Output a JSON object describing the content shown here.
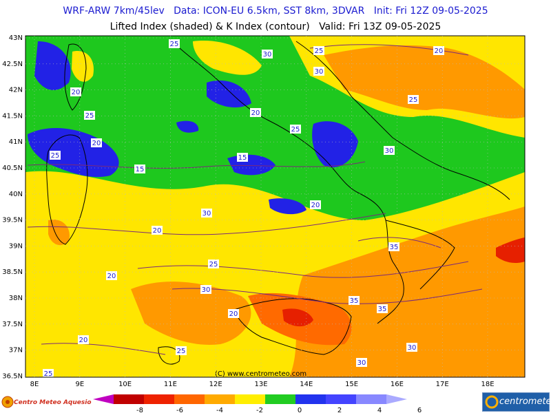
{
  "header": {
    "line1": "WRF-ARW 7km/45lev   Data: ICON-EU 6.5km, SST 8km, 3DVAR   Init: Fri 12Z 09-05-2025",
    "line2": "Lifted Index (shaded) & K Index (contour)   Valid: Fri 13Z 09-05-2025"
  },
  "axes": {
    "lat_labels": [
      "43N",
      "42.5N",
      "42N",
      "41.5N",
      "41N",
      "40.5N",
      "40N",
      "39.5N",
      "39N",
      "38.5N",
      "38N",
      "37.5N",
      "37N",
      "36.5N"
    ],
    "lon_labels": [
      "8E",
      "9E",
      "10E",
      "11E",
      "12E",
      "13E",
      "14E",
      "15E",
      "16E",
      "17E",
      "18E"
    ],
    "lat_range": [
      36.5,
      43
    ],
    "lon_range": [
      7.9,
      18.9
    ]
  },
  "watermark": "(C) www.centrometeo.com",
  "contour_labels": [
    "25",
    "30",
    "25",
    "20",
    "30",
    "20",
    "25",
    "20",
    "25",
    "20",
    "25",
    "15",
    "15",
    "30",
    "20",
    "20",
    "25",
    "20",
    "25",
    "30",
    "30",
    "20",
    "35",
    "35",
    "35",
    "30",
    "20",
    "25",
    "30",
    "25"
  ],
  "colorbar": {
    "ticks": [
      "-8",
      "-6",
      "-4",
      "-2",
      "0",
      "2",
      "4",
      "6"
    ],
    "colors": [
      "#c000c0",
      "#c00000",
      "#ee2200",
      "#ff6600",
      "#ffaa00",
      "#ffee00",
      "#22cc22",
      "#2233ee",
      "#4444ff",
      "#8888ff",
      "#aaaaff"
    ]
  },
  "logos": {
    "left_text": "Centro Meteo Aquesio",
    "right_text": "centrometeo"
  },
  "palette": {
    "sea_green": "#1ec81e",
    "yellow": "#ffe600",
    "orange": "#ff9900",
    "dark_orange": "#ff6a00",
    "red": "#e62000",
    "blue": "#2222e6",
    "coast": "#000000",
    "contour": "#7a2a7a"
  }
}
